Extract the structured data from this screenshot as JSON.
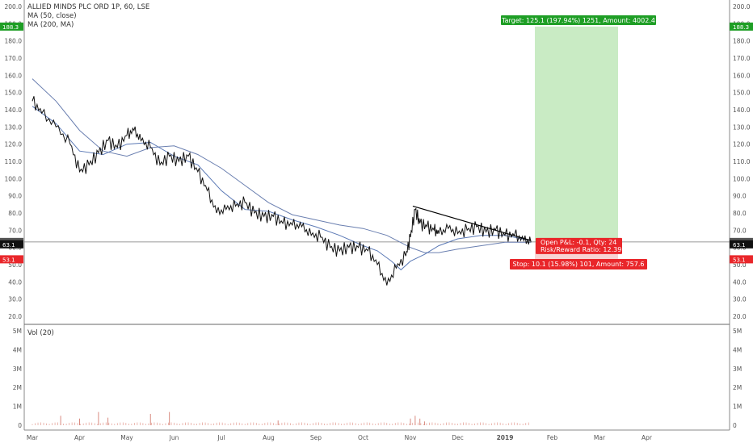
{
  "legend": {
    "symbol_line": "ALLIED MINDS PLC ORD 1P, 60, LSE",
    "ma50_label": "MA (50, close)",
    "ma200_label": "MA (200, MA)"
  },
  "volume_pane": {
    "label": "Vol (20)"
  },
  "price_axis": {
    "ticks": [
      "200.0",
      "190.0",
      "180.0",
      "170.0",
      "160.0",
      "150.0",
      "140.0",
      "130.0",
      "120.0",
      "110.0",
      "100.0",
      "90.0",
      "80.0",
      "70.0",
      "60.0",
      "50.0",
      "40.0",
      "30.0",
      "20.0"
    ]
  },
  "volume_axis": {
    "ticks": [
      "5M",
      "4M",
      "3M",
      "2M",
      "1M",
      "0"
    ]
  },
  "time_axis": {
    "labels": [
      "Mar",
      "Apr",
      "May",
      "Jun",
      "Jul",
      "Aug",
      "Sep",
      "Oct",
      "Nov",
      "Dec",
      "2019",
      "Feb",
      "Mar",
      "Apr"
    ]
  },
  "badges": {
    "target": "188.3",
    "last_gray": "63.2",
    "last_black": "63.1",
    "stop": "53.1"
  },
  "position": {
    "target_label": "Target: 125.1 (197.94%) 1251, Amount: 4002.4",
    "pnl_label": "Open P&L: -0.1, Qty: 24",
    "rr_label": "Risk/Reward Ratio: 12.39",
    "stop_label": "Stop: 10.1 (15.98%) 101, Amount: 757.6",
    "entry_price": 63.2,
    "target_price": 188.3,
    "stop_price": 53.1
  },
  "chart_data": {
    "type": "line",
    "title": "ALLIED MINDS PLC ORD 1P, 60, LSE",
    "ylim": [
      20,
      200
    ],
    "volume_ylim": [
      0,
      5000000
    ],
    "x_months": [
      "Mar",
      "Apr",
      "May",
      "Jun",
      "Jul",
      "Aug",
      "Sep",
      "Oct",
      "Nov",
      "Dec",
      "2019",
      "Feb",
      "Mar",
      "Apr"
    ],
    "series": [
      {
        "name": "price",
        "x": [
          0,
          0.2,
          0.5,
          0.8,
          1.0,
          1.2,
          1.4,
          1.6,
          1.8,
          2.0,
          2.15,
          2.3,
          2.5,
          2.7,
          2.9,
          3.1,
          3.3,
          3.5,
          3.7,
          3.9,
          4.1,
          4.3,
          4.5,
          4.7,
          4.9,
          5.1,
          5.3,
          5.5,
          5.7,
          5.9,
          6.1,
          6.3,
          6.5,
          6.7,
          6.9,
          7.1,
          7.3,
          7.5,
          7.7,
          7.9,
          8.0,
          8.1,
          8.2,
          8.35,
          8.5,
          8.6,
          8.8,
          9.0,
          9.2,
          9.4,
          9.6,
          9.8,
          10.0,
          10.2,
          10.4,
          10.55
        ],
        "values": [
          145,
          138,
          130,
          120,
          104,
          108,
          115,
          122,
          118,
          125,
          128,
          122,
          118,
          108,
          113,
          110,
          113,
          104,
          93,
          80,
          82,
          84,
          86,
          80,
          78,
          78,
          74,
          73,
          72,
          67,
          66,
          60,
          58,
          60,
          60,
          58,
          50,
          38,
          48,
          55,
          66,
          82,
          74,
          72,
          70,
          68,
          71,
          68,
          70,
          72,
          69,
          70,
          67,
          67,
          64,
          63
        ]
      },
      {
        "name": "MA (50, close)",
        "x": [
          0,
          0.5,
          1.0,
          1.5,
          2.0,
          2.5,
          3.0,
          3.5,
          4.0,
          4.5,
          5.0,
          5.5,
          6.0,
          6.5,
          7.0,
          7.3,
          7.6,
          7.8,
          8.0,
          8.3,
          8.6,
          9.0,
          9.5,
          10.0,
          10.55
        ],
        "values": [
          142,
          132,
          116,
          114,
          120,
          121,
          113,
          108,
          93,
          82,
          81,
          76,
          72,
          67,
          61,
          58,
          52,
          47,
          52,
          56,
          61,
          65,
          67,
          67,
          64
        ]
      },
      {
        "name": "MA (200, MA)",
        "x": [
          0,
          0.5,
          1.0,
          1.5,
          2.0,
          2.5,
          3.0,
          3.5,
          4.0,
          4.5,
          5.0,
          5.5,
          6.0,
          6.5,
          7.0,
          7.5,
          8.0,
          8.3,
          8.6,
          9.0,
          9.5,
          10.0,
          10.55
        ],
        "values": [
          158,
          145,
          128,
          116,
          113,
          118,
          119,
          114,
          106,
          96,
          86,
          79,
          76,
          73,
          71,
          67,
          60,
          57,
          57,
          59,
          61,
          63,
          63
        ]
      }
    ],
    "trendline": {
      "x": [
        8.05,
        10.55
      ],
      "values": [
        84,
        64
      ]
    },
    "volume_spikes": {
      "x": [
        0.6,
        1.0,
        1.4,
        1.6,
        2.5,
        2.9,
        5.2,
        8.0,
        8.1,
        8.2,
        8.3
      ],
      "values": [
        500000,
        350000,
        700000,
        400000,
        600000,
        700000,
        250000,
        350000,
        500000,
        350000,
        200000
      ]
    }
  }
}
